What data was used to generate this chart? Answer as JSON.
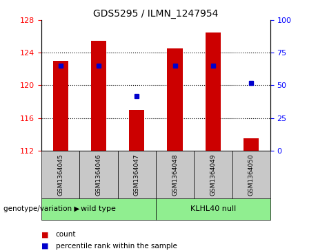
{
  "title": "GDS5295 / ILMN_1247954",
  "samples": [
    "GSM1364045",
    "GSM1364046",
    "GSM1364047",
    "GSM1364048",
    "GSM1364049",
    "GSM1364050"
  ],
  "bar_values": [
    123.0,
    125.5,
    117.0,
    124.5,
    126.5,
    113.5
  ],
  "bar_bottom": 112,
  "percentile_values": [
    65,
    65,
    42,
    65,
    65,
    52
  ],
  "ylim_left": [
    112,
    128
  ],
  "ylim_right": [
    0,
    100
  ],
  "yticks_left": [
    112,
    116,
    120,
    124,
    128
  ],
  "yticks_right": [
    0,
    25,
    50,
    75,
    100
  ],
  "bar_color": "#cc0000",
  "percentile_color": "#0000cc",
  "group1_label": "wild type",
  "group2_label": "KLHL40 null",
  "group_bg_color": "#90ee90",
  "xticklabel_bg": "#c8c8c8",
  "genotype_label": "genotype/variation",
  "legend_count_label": "count",
  "legend_percentile_label": "percentile rank within the sample",
  "dotted_yticks": [
    116,
    120,
    124
  ]
}
